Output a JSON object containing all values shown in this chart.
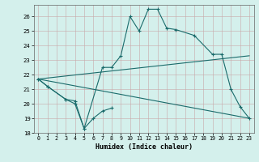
{
  "xlabel": "Humidex (Indice chaleur)",
  "ylabel": "",
  "xlim": [
    -0.5,
    23.5
  ],
  "ylim": [
    18,
    26.8
  ],
  "yticks": [
    18,
    19,
    20,
    21,
    22,
    23,
    24,
    25,
    26
  ],
  "xticks": [
    0,
    1,
    2,
    3,
    4,
    5,
    6,
    7,
    8,
    9,
    10,
    11,
    12,
    13,
    14,
    15,
    16,
    17,
    18,
    19,
    20,
    21,
    22,
    23
  ],
  "background_color": "#d4f0ec",
  "grid_color": "#c8a8a8",
  "line_color": "#1a6b6b",
  "curve1_x": [
    0,
    1,
    3,
    4,
    5,
    7,
    8,
    9,
    10,
    11,
    12,
    13,
    14,
    15,
    17,
    19,
    20,
    21,
    22,
    23
  ],
  "curve1_y": [
    21.7,
    21.2,
    20.3,
    20.2,
    18.3,
    22.5,
    22.5,
    23.3,
    26.0,
    25.0,
    26.5,
    26.5,
    25.2,
    25.1,
    24.7,
    23.4,
    23.4,
    21.0,
    19.8,
    19.0
  ],
  "curve2_x": [
    0,
    1,
    3,
    4,
    5,
    6,
    7,
    8
  ],
  "curve2_y": [
    21.7,
    21.2,
    20.3,
    20.0,
    18.3,
    19.0,
    19.5,
    19.7
  ],
  "trend1_x": [
    0,
    23
  ],
  "trend1_y": [
    21.7,
    23.3
  ],
  "trend2_x": [
    0,
    23
  ],
  "trend2_y": [
    21.7,
    19.0
  ]
}
